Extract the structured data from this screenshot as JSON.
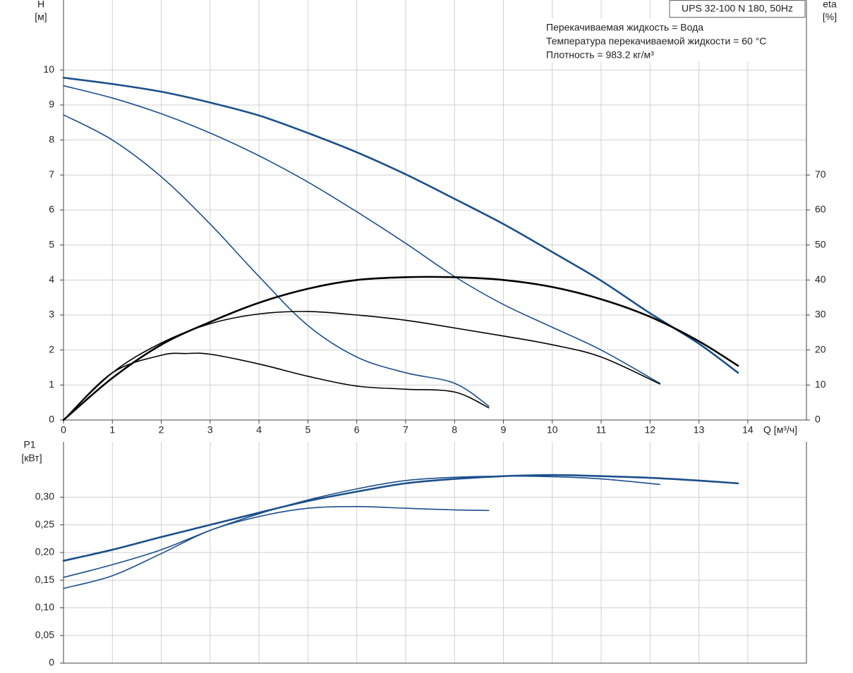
{
  "chart_data": [
    {
      "type": "line",
      "title": "UPS 32-100 N 180, 50Hz",
      "annotations": [
        "Перекачиваемая жидкость = Вода",
        "Температура перекачиваемой жидкости = 60 °C",
        "Плотность = 983.2 кг/м³"
      ],
      "ylabel": "H",
      "yunit": "[м]",
      "y2label": "eta",
      "y2unit": "[%]",
      "xlabel": "Q [м³/ч]",
      "xlim": [
        0,
        15.2
      ],
      "xticks": [
        0,
        1,
        2,
        3,
        4,
        5,
        6,
        7,
        8,
        9,
        10,
        11,
        12,
        13,
        14
      ],
      "ylim": [
        0,
        12
      ],
      "yticks": [
        0,
        1,
        2,
        3,
        4,
        5,
        6,
        7,
        8,
        9,
        10
      ],
      "y2lim": [
        0,
        120
      ],
      "y2ticks": [
        0,
        10,
        20,
        30,
        40,
        50,
        60,
        70
      ],
      "grid": true,
      "series": [
        {
          "color": "#1b4f8c",
          "width": 2.6,
          "x": [
            0,
            1,
            2,
            3,
            4,
            5,
            6,
            7,
            8,
            9,
            10,
            11,
            12,
            13,
            13.8
          ],
          "values": [
            9.78,
            9.6,
            9.38,
            9.07,
            8.7,
            8.2,
            7.65,
            7.02,
            6.32,
            5.6,
            4.8,
            3.98,
            3.05,
            2.18,
            1.35
          ]
        },
        {
          "color": "#1b4f8c",
          "width": 1.6,
          "x": [
            0,
            1,
            2,
            3,
            4,
            5,
            6,
            7,
            8,
            9,
            10,
            11,
            12.2
          ],
          "values": [
            9.55,
            9.2,
            8.75,
            8.2,
            7.55,
            6.8,
            5.95,
            5.05,
            4.1,
            3.3,
            2.65,
            2.0,
            1.05
          ]
        },
        {
          "color": "#1b4f8c",
          "width": 1.6,
          "x": [
            0,
            1,
            2,
            3,
            4,
            5,
            6,
            7,
            8,
            8.7
          ],
          "values": [
            8.72,
            8.0,
            6.95,
            5.6,
            4.1,
            2.7,
            1.8,
            1.35,
            1.05,
            0.4
          ]
        },
        {
          "color": "#000000",
          "width": 2.6,
          "axis": "y2",
          "x": [
            0,
            1,
            2,
            3,
            4,
            5,
            6,
            7,
            8,
            9,
            10,
            11,
            12,
            13,
            13.8
          ],
          "values": [
            0,
            12,
            21.5,
            28,
            33.5,
            37.5,
            40,
            40.8,
            40.8,
            40,
            38,
            34.5,
            29.5,
            22.5,
            15.5
          ]
        },
        {
          "color": "#000000",
          "width": 1.6,
          "axis": "y2",
          "x": [
            0,
            1,
            2,
            3,
            4,
            5,
            6,
            7,
            8,
            9,
            10,
            11,
            12.2
          ],
          "values": [
            0,
            13.5,
            22,
            27.5,
            30.3,
            31,
            30,
            28.5,
            26.3,
            24,
            21.5,
            18,
            10.3
          ]
        },
        {
          "color": "#000000",
          "width": 1.6,
          "axis": "y2",
          "x": [
            0,
            1,
            2,
            2.5,
            3,
            4,
            5,
            6,
            7,
            8,
            8.7
          ],
          "values": [
            0,
            13.5,
            18.5,
            19,
            18.8,
            16,
            12.5,
            9.7,
            8.8,
            8,
            3.5
          ]
        }
      ]
    },
    {
      "type": "line",
      "ylabel": "P1",
      "yunit": "[кВт]",
      "xlim": [
        0,
        15.2
      ],
      "ylim": [
        0,
        0.4
      ],
      "yticks": [
        0,
        {
          "value": 0.05,
          "label": "0,05"
        },
        {
          "value": 0.1,
          "label": "0,10"
        },
        {
          "value": 0.15,
          "label": "0,15"
        },
        {
          "value": 0.2,
          "label": "0,20"
        },
        {
          "value": 0.25,
          "label": "0,25"
        },
        {
          "value": 0.3,
          "label": "0,30"
        }
      ],
      "grid": true,
      "series": [
        {
          "color": "#1b4f8c",
          "width": 2.6,
          "x": [
            0,
            1,
            2,
            3,
            4,
            5,
            6,
            7,
            8,
            9,
            10,
            11,
            12,
            13,
            13.8
          ],
          "values": [
            0.185,
            0.205,
            0.228,
            0.25,
            0.272,
            0.293,
            0.31,
            0.325,
            0.333,
            0.338,
            0.34,
            0.338,
            0.335,
            0.33,
            0.325
          ]
        },
        {
          "color": "#1b4f8c",
          "width": 1.6,
          "x": [
            0,
            1,
            2,
            3,
            4,
            5,
            6,
            7,
            8,
            9,
            10,
            11,
            12.2
          ],
          "values": [
            0.155,
            0.178,
            0.205,
            0.24,
            0.27,
            0.295,
            0.315,
            0.33,
            0.336,
            0.338,
            0.337,
            0.333,
            0.323
          ]
        },
        {
          "color": "#1b4f8c",
          "width": 1.6,
          "x": [
            0,
            1,
            2,
            3,
            4,
            5,
            6,
            7,
            8,
            8.7
          ],
          "values": [
            0.135,
            0.158,
            0.198,
            0.24,
            0.265,
            0.28,
            0.283,
            0.28,
            0.277,
            0.276
          ]
        }
      ]
    }
  ]
}
